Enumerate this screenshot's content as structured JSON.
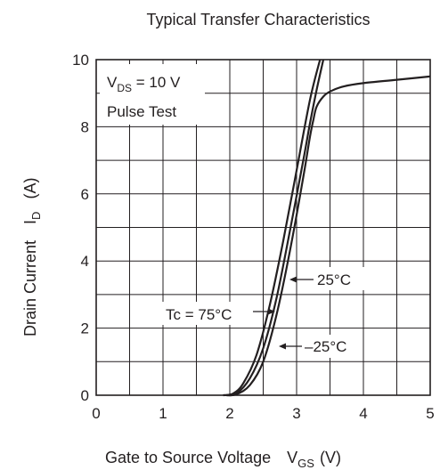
{
  "chart_data": {
    "type": "line",
    "title": "Typical Transfer Characteristics",
    "xlabel": {
      "main": "Gate to Source Voltage",
      "symbol": "V",
      "subscript": "GS",
      "unit": "(V)"
    },
    "ylabel": {
      "main": "Drain Current",
      "symbol": "I",
      "subscript": "D",
      "unit": "(A)"
    },
    "xlim": [
      0,
      5
    ],
    "ylim": [
      0,
      10
    ],
    "x_ticks": [
      0,
      1,
      2,
      3,
      4,
      5
    ],
    "y_ticks": [
      0,
      2,
      4,
      6,
      8,
      10
    ],
    "grid": true,
    "conditions": {
      "vds": {
        "symbol": "V",
        "subscript": "DS",
        "value": " = 10 V"
      },
      "pulse": "Pulse Test"
    },
    "series": [
      {
        "name": "–25°C",
        "x": [
          1.95,
          2.1,
          2.3,
          2.5,
          2.7,
          2.9,
          3.1,
          3.2,
          3.25,
          3.3,
          3.4,
          3.5,
          3.7,
          4.0,
          4.5,
          5.0
        ],
        "y": [
          0,
          0.03,
          0.3,
          1.0,
          2.4,
          4.3,
          6.5,
          7.7,
          8.2,
          8.6,
          8.9,
          9.05,
          9.2,
          9.3,
          9.4,
          9.5
        ]
      },
      {
        "name": "25°C",
        "x": [
          1.95,
          2.1,
          2.3,
          2.5,
          2.7,
          2.9,
          3.1,
          3.2,
          3.3,
          3.4
        ],
        "y": [
          0,
          0.05,
          0.5,
          1.4,
          2.9,
          4.9,
          7.0,
          8.1,
          9.1,
          10.0
        ]
      },
      {
        "name": "Tc = 75°C",
        "x": [
          1.9,
          2.05,
          2.2,
          2.4,
          2.6,
          2.8,
          3.0,
          3.2,
          3.35
        ],
        "y": [
          0,
          0.05,
          0.35,
          1.2,
          2.7,
          4.6,
          6.7,
          8.8,
          10.0
        ]
      }
    ],
    "annotations": [
      {
        "text": "25°C",
        "series": "25°C"
      },
      {
        "text": "Tc = 75°C",
        "series": "Tc = 75°C"
      },
      {
        "text": "–25°C",
        "series": "–25°C"
      }
    ]
  }
}
